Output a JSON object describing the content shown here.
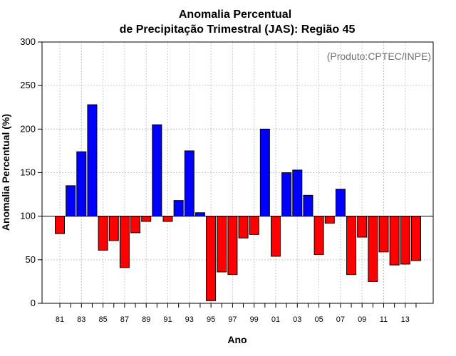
{
  "chart_data": {
    "type": "bar",
    "title_line1": "Anomalia Percentual",
    "title_line2": "de Precipitação Trimestral (JAS): Região 45",
    "xlabel": "Ano",
    "ylabel": "Anomalia Percentual (%)",
    "annotation": "(Produto:CPTEC/INPE)",
    "ylim": [
      0,
      300
    ],
    "yticks": [
      0,
      50,
      100,
      150,
      200,
      250,
      300
    ],
    "baseline": 100,
    "grid": true,
    "colors": {
      "above": "#0000ff",
      "below": "#ff0000",
      "edge": "#000000",
      "grid": "#c8c8c8"
    },
    "categories": [
      "81",
      "82",
      "83",
      "84",
      "85",
      "86",
      "87",
      "88",
      "89",
      "90",
      "91",
      "92",
      "93",
      "94",
      "95",
      "96",
      "97",
      "98",
      "99",
      "00",
      "01",
      "02",
      "03",
      "04",
      "05",
      "06",
      "07",
      "08",
      "09",
      "10",
      "11",
      "12",
      "13",
      "14"
    ],
    "xtick_labels": [
      "81",
      "83",
      "85",
      "87",
      "89",
      "91",
      "93",
      "95",
      "97",
      "99",
      "01",
      "03",
      "05",
      "07",
      "09",
      "11",
      "13"
    ],
    "values": [
      80,
      135,
      174,
      228,
      61,
      72,
      41,
      81,
      94,
      205,
      94,
      118,
      175,
      104,
      3,
      36,
      33,
      75,
      79,
      200,
      54,
      150,
      153,
      124,
      56,
      92,
      131,
      33,
      76,
      25,
      59,
      44,
      45,
      49
    ]
  }
}
